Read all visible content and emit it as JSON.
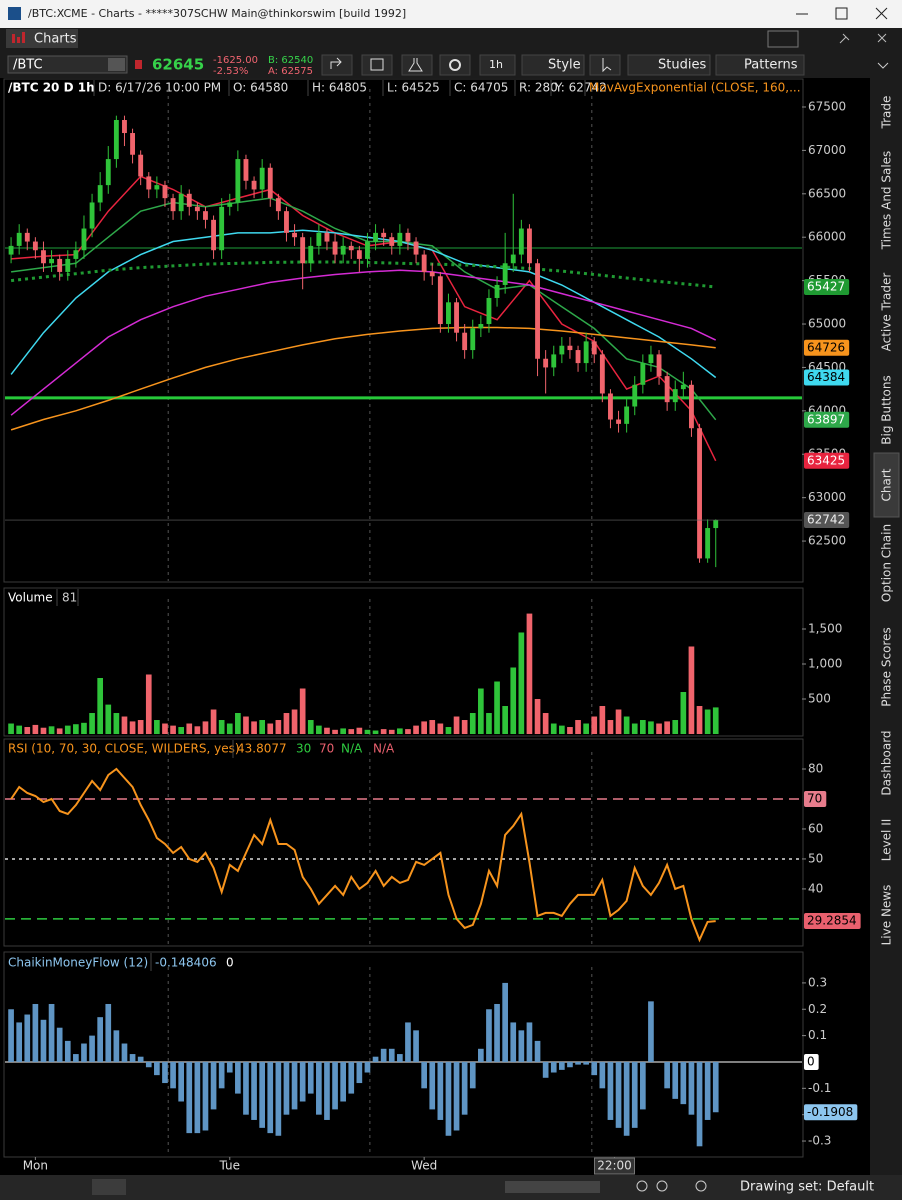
{
  "window": {
    "title": "/BTC:XCME - Charts - *****307SCHW Main@thinkorswim [build 1992]",
    "tab": "Charts"
  },
  "quote": {
    "symbol": "/BTC",
    "last": "62645",
    "change": "-1625.00",
    "change_pct": "-2.53%",
    "bid": "B: 62540",
    "ask": "A: 62575"
  },
  "toolbar": {
    "buttons": [
      "1h",
      "Style",
      "Studies",
      "Patterns"
    ]
  },
  "side_tabs": [
    "Trade",
    "Times And Sales",
    "Active Trader",
    "Big Buttons",
    "Chart",
    "Option Chain",
    "Phase Scores",
    "Dashboard",
    "Level II",
    "Live News"
  ],
  "active_side_tab": 4,
  "footer": {
    "drawing_set": "Drawing set: Default"
  },
  "chart_data": [
    {
      "type": "candlestick",
      "title": "/BTC 20 D 1h",
      "readout": [
        "D: 6/17/26 10:00 PM",
        "O: 64580",
        "H: 64805",
        "L: 64525",
        "C: 64705",
        "R: 280",
        "Y: 62742"
      ],
      "study": "MovAvgExponential (CLOSE, 160,...",
      "up_color": "#2fc43a",
      "down_color": "#f0646c",
      "xlim": [
        -0.75,
        97.65
      ],
      "xticks": [
        {
          "value": 3,
          "label": "Mon"
        },
        {
          "value": 27,
          "label": "Tue"
        },
        {
          "value": 51,
          "label": "Wed"
        },
        {
          "value": 74.5,
          "label": "22:00"
        }
      ],
      "vlines": [
        19.4,
        44.3,
        71.7
      ],
      "ylim": [
        62040,
        67615
      ],
      "yticks": [
        62500,
        63000,
        63500,
        64000,
        64500,
        65000,
        65500,
        66000,
        66500,
        67000,
        67500
      ],
      "open": [
        65800,
        65900,
        66050,
        65950,
        65850,
        65700,
        65750,
        65600,
        65750,
        65850,
        66100,
        66400,
        66600,
        66900,
        67350,
        67200,
        66950,
        66700,
        66550,
        66600,
        66450,
        66300,
        66500,
        66350,
        66300,
        66200,
        65850,
        66350,
        66400,
        66900,
        66650,
        66550,
        66800,
        66450,
        66300,
        66050,
        66000,
        65700,
        65900,
        66050,
        65950,
        65800,
        65900,
        65850,
        65750,
        65950,
        66050,
        66000,
        65900,
        66050,
        65950,
        65800,
        65600,
        65550,
        65000,
        65250,
        64900,
        64700,
        64950,
        65000,
        65300,
        65450,
        65700,
        65800,
        66100,
        65700,
        64600,
        64500,
        64650,
        64750,
        64700,
        64550,
        64800,
        64650,
        64200,
        63900,
        63850,
        64050,
        64300,
        64550,
        64650,
        64400,
        64100,
        64250,
        64300,
        63800,
        62300,
        62650
      ],
      "high": [
        66000,
        66150,
        66100,
        66000,
        65950,
        65850,
        65800,
        65850,
        65950,
        66250,
        66500,
        66750,
        67050,
        67400,
        67400,
        67250,
        67000,
        66750,
        66700,
        66650,
        66500,
        66600,
        66550,
        66400,
        66350,
        66250,
        66450,
        66500,
        67000,
        66950,
        66700,
        66900,
        66850,
        66500,
        66350,
        66150,
        66050,
        66000,
        66150,
        66100,
        66050,
        66000,
        65950,
        65900,
        66050,
        66150,
        66100,
        66050,
        66150,
        66100,
        66000,
        65850,
        65700,
        65600,
        65350,
        65300,
        65000,
        65050,
        65100,
        65400,
        65550,
        66050,
        66500,
        66200,
        66150,
        65750,
        64700,
        64750,
        64850,
        64850,
        64750,
        64900,
        64850,
        64700,
        64250,
        64000,
        64150,
        64400,
        64650,
        64750,
        64700,
        64450,
        64350,
        64450,
        64350,
        63850,
        62750,
        62750
      ],
      "low": [
        65700,
        65800,
        65850,
        65750,
        65600,
        65600,
        65500,
        65500,
        65650,
        65750,
        66000,
        66300,
        66500,
        66800,
        67050,
        66850,
        66600,
        66450,
        66450,
        66350,
        66200,
        66200,
        66250,
        66200,
        66100,
        65750,
        65750,
        66250,
        66300,
        66550,
        66450,
        66450,
        66350,
        66200,
        65950,
        65900,
        65400,
        65600,
        65800,
        65850,
        65700,
        65700,
        65750,
        65600,
        65650,
        65850,
        65900,
        65800,
        65800,
        65850,
        65700,
        65500,
        65450,
        64900,
        64900,
        64800,
        64600,
        64600,
        64850,
        64900,
        65200,
        65350,
        65600,
        65700,
        65600,
        64400,
        64200,
        64400,
        64550,
        64600,
        64450,
        64450,
        64550,
        64100,
        63800,
        63750,
        63750,
        63950,
        64200,
        64450,
        64300,
        64000,
        64000,
        64150,
        63700,
        62250,
        62250,
        62200
      ],
      "close": [
        65900,
        66050,
        65950,
        65850,
        65700,
        65750,
        65600,
        65750,
        65850,
        66100,
        66400,
        66600,
        66900,
        67350,
        67200,
        66950,
        66700,
        66550,
        66600,
        66450,
        66300,
        66500,
        66350,
        66300,
        66200,
        65850,
        66350,
        66400,
        66900,
        66650,
        66550,
        66800,
        66450,
        66300,
        66050,
        66000,
        65700,
        65900,
        66050,
        65950,
        65800,
        65900,
        65850,
        65750,
        65950,
        66050,
        66000,
        65900,
        66050,
        65950,
        65800,
        65600,
        65550,
        65000,
        65250,
        64900,
        64700,
        64950,
        65000,
        65300,
        65450,
        65700,
        65800,
        66100,
        65700,
        64600,
        64500,
        64650,
        64750,
        64700,
        64550,
        64800,
        64650,
        64200,
        63900,
        63850,
        64050,
        64300,
        64550,
        64650,
        64400,
        64100,
        64250,
        64300,
        63800,
        62300,
        62650,
        62742
      ],
      "last_color": "#555555",
      "hlines": [
        {
          "value": 65875,
          "color": "#1e9e3a",
          "weight": "thin"
        },
        {
          "value": 64150,
          "color": "#27c93a",
          "weight": "thick"
        }
      ],
      "overlays": [
        {
          "color": "#e8243f",
          "style": "solid",
          "price_label": true,
          "x": [
            0,
            4,
            8,
            12,
            16,
            20,
            24,
            28,
            32,
            36,
            40,
            44,
            48,
            52,
            56,
            60,
            64,
            68,
            72,
            76,
            80,
            84,
            87
          ],
          "values": [
            65750,
            65780,
            65800,
            66300,
            66700,
            66550,
            66350,
            66450,
            66550,
            66250,
            66050,
            65900,
            65950,
            65850,
            65200,
            65050,
            65500,
            65000,
            64800,
            64250,
            64400,
            64000,
            63425
          ]
        },
        {
          "color": "#2ea84a",
          "style": "solid",
          "price_label": true,
          "x": [
            0,
            4,
            8,
            12,
            16,
            20,
            24,
            28,
            32,
            36,
            40,
            44,
            48,
            52,
            56,
            60,
            64,
            68,
            72,
            76,
            80,
            84,
            87
          ],
          "values": [
            65600,
            65650,
            65700,
            66000,
            66300,
            66400,
            66350,
            66400,
            66450,
            66300,
            66100,
            65950,
            65950,
            65900,
            65600,
            65400,
            65450,
            65200,
            64950,
            64600,
            64500,
            64250,
            63897
          ]
        },
        {
          "color": "#3fd9ef",
          "style": "solid",
          "price_label": true,
          "x": [
            0,
            4,
            8,
            12,
            16,
            20,
            24,
            28,
            32,
            36,
            40,
            44,
            48,
            52,
            56,
            60,
            64,
            68,
            72,
            76,
            80,
            84,
            87
          ],
          "values": [
            64420,
            64900,
            65300,
            65600,
            65800,
            65950,
            66000,
            66050,
            66050,
            66080,
            66050,
            66000,
            65950,
            65850,
            65700,
            65650,
            65600,
            65450,
            65250,
            65050,
            64850,
            64600,
            64384
          ]
        },
        {
          "color": "#d42bd4",
          "style": "solid",
          "price_label": false,
          "x": [
            0,
            4,
            8,
            12,
            16,
            20,
            24,
            28,
            32,
            36,
            40,
            44,
            48,
            52,
            56,
            60,
            64,
            68,
            72,
            76,
            80,
            84,
            87
          ],
          "values": [
            63950,
            64250,
            64550,
            64850,
            65050,
            65200,
            65320,
            65400,
            65480,
            65530,
            65570,
            65600,
            65620,
            65600,
            65550,
            65500,
            65450,
            65350,
            65250,
            65150,
            65050,
            64950,
            64815
          ]
        },
        {
          "color": "#f7941d",
          "style": "solid",
          "price_label": true,
          "x": [
            0,
            4,
            8,
            12,
            16,
            20,
            24,
            28,
            32,
            36,
            40,
            44,
            48,
            52,
            56,
            60,
            64,
            68,
            72,
            76,
            80,
            84,
            87
          ],
          "values": [
            63780,
            63900,
            64000,
            64120,
            64250,
            64380,
            64500,
            64600,
            64680,
            64760,
            64830,
            64880,
            64920,
            64950,
            64960,
            64960,
            64950,
            64920,
            64880,
            64840,
            64800,
            64760,
            64726
          ]
        },
        {
          "color": "#1f9a32",
          "style": "dotted",
          "price_label": true,
          "x": [
            0,
            4,
            8,
            12,
            16,
            20,
            24,
            28,
            32,
            36,
            40,
            44,
            48,
            52,
            56,
            60,
            64,
            68,
            72,
            76,
            80,
            84,
            87
          ],
          "values": [
            65500,
            65540,
            65580,
            65620,
            65650,
            65670,
            65690,
            65700,
            65710,
            65715,
            65715,
            65710,
            65700,
            65690,
            65680,
            65660,
            65640,
            65610,
            65570,
            65530,
            65490,
            65455,
            65427
          ]
        }
      ]
    },
    {
      "type": "bar",
      "title": "Volume",
      "readout": "81",
      "up_color": "#2fc43a",
      "down_color": "#f0646c",
      "ylim": [
        -14,
        1814
      ],
      "yticks": [
        500,
        {
          "value": 1000,
          "label": "1,000"
        },
        {
          "value": 1500,
          "label": "1,500"
        }
      ],
      "values": [
        150,
        120,
        100,
        130,
        90,
        110,
        80,
        120,
        140,
        160,
        300,
        800,
        420,
        300,
        250,
        180,
        200,
        850,
        200,
        150,
        120,
        100,
        150,
        110,
        180,
        350,
        200,
        150,
        300,
        250,
        180,
        200,
        150,
        200,
        300,
        350,
        650,
        200,
        120,
        90,
        60,
        80,
        70,
        90,
        60,
        50,
        70,
        60,
        80,
        70,
        120,
        180,
        200,
        150,
        100,
        250,
        200,
        300,
        650,
        300,
        750,
        400,
        950,
        1450,
        1720,
        500,
        300,
        150,
        120,
        100,
        200,
        150,
        250,
        400,
        200,
        350,
        250,
        150,
        200,
        180,
        150,
        180,
        200,
        600,
        1250,
        400,
        350,
        380
      ]
    },
    {
      "type": "line",
      "title": "RSI (10, 70, 30, CLOSE, WILDERS, yes)",
      "readout": "43.8077",
      "flags": [
        "N/A",
        "N/A"
      ],
      "color": "#f7941d",
      "label_color": "#e9606e",
      "ylim": [
        21.3,
        83
      ],
      "yticks": [
        40,
        50,
        60,
        80
      ],
      "levels": [
        {
          "value": 70,
          "color": "#e77c8c",
          "style": "dashed",
          "price_label": true
        },
        {
          "value": 50,
          "color": "#dddddd",
          "style": "dotted",
          "price_label": false
        },
        {
          "value": 30,
          "color": "#2ecc40",
          "style": "dashed",
          "price_label": false
        }
      ],
      "values": [
        70,
        74,
        72,
        71,
        69,
        70,
        66,
        65,
        68,
        72,
        76,
        73,
        78,
        80,
        77,
        74,
        68,
        63,
        57,
        55,
        52,
        54,
        50,
        49,
        52,
        47,
        39,
        48,
        46,
        52,
        58,
        55,
        63,
        55,
        55,
        53,
        44,
        40,
        35,
        38,
        41,
        38,
        44,
        40,
        42,
        46,
        41,
        44,
        42,
        43,
        49,
        48,
        50,
        52,
        38,
        30,
        27,
        28,
        35,
        46,
        41,
        58,
        61,
        65,
        49,
        31,
        32,
        32,
        31,
        35,
        38,
        38,
        38,
        43,
        31,
        33,
        36,
        47,
        41,
        38,
        42,
        48,
        40,
        41,
        30,
        23,
        29,
        29.2854
      ]
    },
    {
      "type": "bar",
      "title": "ChaikinMoneyFlow (12)",
      "readout": "-0.148406",
      "color": "#5f95c4",
      "label_color": "#8dc6ef",
      "ylim": [
        -0.353,
        0.33
      ],
      "yticks": [
        -0.3,
        -0.2,
        -0.1,
        0.1,
        0.2,
        0.3
      ],
      "levels": [
        {
          "value": 0,
          "color": "#ffffff",
          "style": "solid",
          "price_label": true
        }
      ],
      "values": [
        0.2,
        0.15,
        0.18,
        0.22,
        0.16,
        0.22,
        0.13,
        0.08,
        0.03,
        0.07,
        0.1,
        0.17,
        0.22,
        0.12,
        0.07,
        0.03,
        0.02,
        -0.02,
        -0.05,
        -0.08,
        -0.1,
        -0.15,
        -0.27,
        -0.27,
        -0.26,
        -0.18,
        -0.1,
        -0.04,
        -0.12,
        -0.2,
        -0.22,
        -0.25,
        -0.27,
        -0.28,
        -0.2,
        -0.18,
        -0.15,
        -0.12,
        -0.2,
        -0.22,
        -0.18,
        -0.15,
        -0.12,
        -0.08,
        -0.04,
        0.02,
        0.05,
        0.05,
        0.03,
        0.15,
        0.12,
        -0.1,
        -0.18,
        -0.22,
        -0.28,
        -0.26,
        -0.2,
        -0.1,
        0.05,
        0.2,
        0.22,
        0.3,
        0.15,
        0.12,
        0.15,
        0.08,
        -0.06,
        -0.04,
        -0.03,
        -0.02,
        -0.01,
        -0.01,
        -0.05,
        -0.1,
        -0.22,
        -0.25,
        -0.28,
        -0.25,
        -0.18,
        0.23,
        0.0,
        -0.1,
        -0.14,
        -0.16,
        -0.2,
        -0.32,
        -0.22,
        -0.1908
      ]
    }
  ]
}
